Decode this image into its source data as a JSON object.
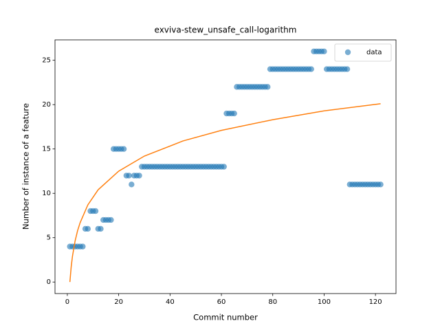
{
  "chart_data": {
    "type": "scatter",
    "title": "exviva-stew_unsafe_call-logarithm",
    "x_label": "Commit number",
    "y_label": "Number of instance of a feature",
    "xlim": [
      -4.8,
      128
    ],
    "ylim": [
      -1.3,
      27.3
    ],
    "xticks": [
      0,
      20,
      40,
      60,
      80,
      100,
      120
    ],
    "yticks": [
      0,
      5,
      10,
      15,
      20,
      25
    ],
    "legend": "upper right",
    "series": [
      {
        "name": "data",
        "type": "scatter",
        "color": "#1f77b4",
        "alpha": 0.6,
        "x": [
          1,
          2,
          3,
          4,
          5,
          6,
          7,
          8,
          9,
          10,
          11,
          12,
          13,
          14,
          15,
          16,
          17,
          18,
          19,
          20,
          21,
          22,
          23,
          24,
          25,
          26,
          27,
          28,
          29,
          30,
          31,
          32,
          33,
          34,
          35,
          36,
          37,
          38,
          39,
          40,
          41,
          42,
          43,
          44,
          45,
          46,
          47,
          48,
          49,
          50,
          51,
          52,
          53,
          54,
          55,
          56,
          57,
          58,
          59,
          60,
          61,
          62,
          63,
          64,
          65,
          66,
          67,
          68,
          69,
          70,
          71,
          72,
          73,
          74,
          75,
          76,
          77,
          78,
          79,
          80,
          81,
          82,
          83,
          84,
          85,
          86,
          87,
          88,
          89,
          90,
          91,
          92,
          93,
          94,
          95,
          96,
          97,
          98,
          99,
          100,
          101,
          102,
          103,
          104,
          105,
          106,
          107,
          108,
          109,
          110,
          111,
          112,
          113,
          114,
          115,
          116,
          117,
          118,
          119,
          120,
          121,
          122
        ],
        "values": [
          4,
          4,
          4,
          4,
          4,
          4,
          6,
          6,
          8,
          8,
          8,
          6,
          6,
          7,
          7,
          7,
          7,
          15,
          15,
          15,
          15,
          15,
          12,
          12,
          11,
          12,
          12,
          12,
          13,
          13,
          13,
          13,
          13,
          13,
          13,
          13,
          13,
          13,
          13,
          13,
          13,
          13,
          13,
          13,
          13,
          13,
          13,
          13,
          13,
          13,
          13,
          13,
          13,
          13,
          13,
          13,
          13,
          13,
          13,
          13,
          13,
          19,
          19,
          19,
          19,
          22,
          22,
          22,
          22,
          22,
          22,
          22,
          22,
          22,
          22,
          22,
          22,
          22,
          24,
          24,
          24,
          24,
          24,
          24,
          24,
          24,
          24,
          24,
          24,
          24,
          24,
          24,
          24,
          24,
          24,
          26,
          26,
          26,
          26,
          26,
          24,
          24,
          24,
          24,
          24,
          24,
          24,
          24,
          24,
          11,
          11,
          11,
          11,
          11,
          11,
          11,
          11,
          11,
          11,
          11,
          11,
          11
        ]
      },
      {
        "type": "line",
        "color": "#ff7f0e",
        "x": [
          1,
          1.5,
          2,
          3,
          4,
          5,
          8,
          12,
          20,
          30,
          45,
          60,
          80,
          100,
          122
        ],
        "values": [
          0,
          1.7,
          2.9,
          4.6,
          5.8,
          6.7,
          8.7,
          10.4,
          12.5,
          14.2,
          15.9,
          17.1,
          18.3,
          19.3,
          20.1
        ]
      }
    ]
  }
}
